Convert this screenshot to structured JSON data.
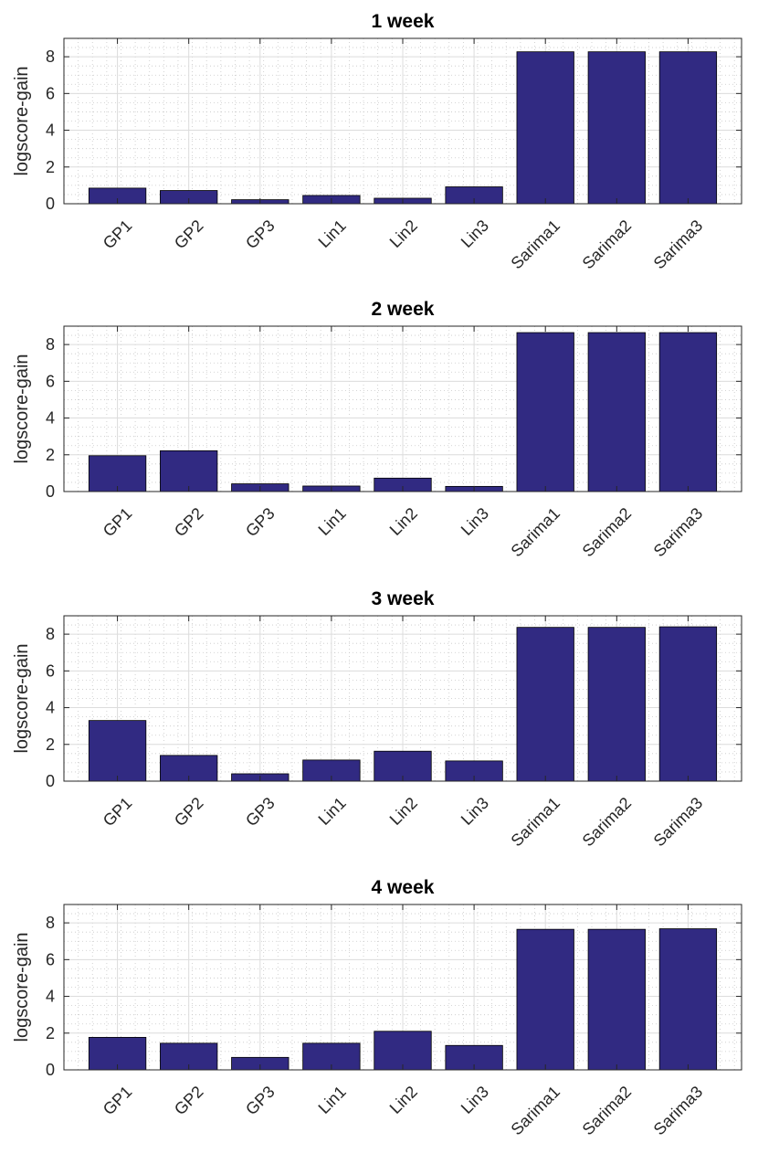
{
  "figure_colors": {
    "bar": "#312a82",
    "bar_edge": "#000000",
    "axis": "#262626"
  },
  "chart_data": [
    {
      "type": "bar",
      "title": "1 week",
      "ylabel": "logscore-gain",
      "xlabel": "",
      "ylim": [
        0,
        9
      ],
      "yticks": [
        "0",
        "2",
        "4",
        "6",
        "8"
      ],
      "grid": "major+minor",
      "categories": [
        "GP1",
        "GP2",
        "GP3",
        "Lin1",
        "Lin2",
        "Lin3",
        "Sarima1",
        "Sarima2",
        "Sarima3"
      ],
      "values": [
        0.85,
        0.72,
        0.22,
        0.45,
        0.3,
        0.92,
        8.27,
        8.27,
        8.27
      ]
    },
    {
      "type": "bar",
      "title": "2 week",
      "ylabel": "logscore-gain",
      "xlabel": "",
      "ylim": [
        0,
        9
      ],
      "yticks": [
        "0",
        "2",
        "4",
        "6",
        "8"
      ],
      "grid": "major+minor",
      "categories": [
        "GP1",
        "GP2",
        "GP3",
        "Lin1",
        "Lin2",
        "Lin3",
        "Sarima1",
        "Sarima2",
        "Sarima3"
      ],
      "values": [
        1.95,
        2.22,
        0.42,
        0.3,
        0.73,
        0.28,
        8.65,
        8.65,
        8.65
      ]
    },
    {
      "type": "bar",
      "title": "3 week",
      "ylabel": "logscore-gain",
      "xlabel": "",
      "ylim": [
        0,
        9
      ],
      "yticks": [
        "0",
        "2",
        "4",
        "6",
        "8"
      ],
      "grid": "major+minor",
      "categories": [
        "GP1",
        "GP2",
        "GP3",
        "Lin1",
        "Lin2",
        "Lin3",
        "Sarima1",
        "Sarima2",
        "Sarima3"
      ],
      "values": [
        3.3,
        1.4,
        0.4,
        1.15,
        1.63,
        1.1,
        8.37,
        8.37,
        8.4
      ]
    },
    {
      "type": "bar",
      "title": "4 week",
      "ylabel": "logscore-gain",
      "xlabel": "",
      "ylim": [
        0,
        9
      ],
      "yticks": [
        "0",
        "2",
        "4",
        "6",
        "8"
      ],
      "grid": "major+minor",
      "categories": [
        "GP1",
        "GP2",
        "GP3",
        "Lin1",
        "Lin2",
        "Lin3",
        "Sarima1",
        "Sarima2",
        "Sarima3"
      ],
      "values": [
        1.77,
        1.45,
        0.68,
        1.45,
        2.1,
        1.33,
        7.65,
        7.65,
        7.68
      ]
    }
  ]
}
